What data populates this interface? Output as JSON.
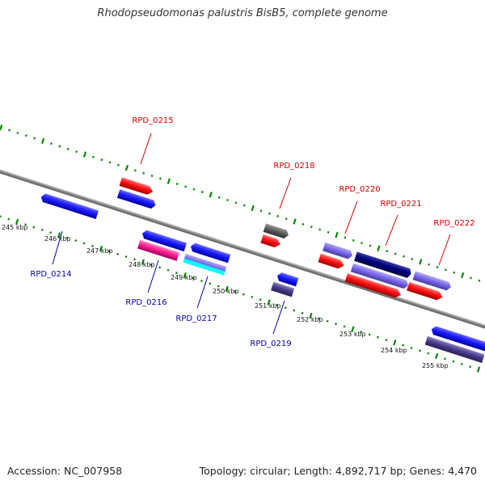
{
  "title": "Rhodopseudomonas palustris BisB5, complete genome",
  "footer": {
    "accession": "Accession: NC_007958",
    "summary": "Topology: circular; Length: 4,892,717 bp; Genes: 4,470"
  },
  "scale": {
    "kbp_labels": [
      "245 kbp",
      "246 kbp",
      "247 kbp",
      "248 kbp",
      "249 kbp",
      "250 kbp",
      "251 kbp",
      "252 kbp",
      "253 kbp",
      "254 kbp",
      "255 kbp"
    ]
  },
  "genes": {
    "RPD_0214": "RPD_0214",
    "RPD_0215": "RPD_0215",
    "RPD_0216": "RPD_0216",
    "RPD_0217": "RPD_0217",
    "RPD_0218": "RPD_0218",
    "RPD_0219": "RPD_0219",
    "RPD_0220": "RPD_0220",
    "RPD_0221": "RPD_0221",
    "RPD_0222": "RPD_0222"
  },
  "colors": {
    "forward_label": "#cc0000",
    "reverse_label": "#0000aa",
    "tick": "#008800",
    "backbone": "#888888",
    "blue": "#0000ee",
    "red": "#ee0000",
    "magenta": "#ee1493",
    "gray": "#555555",
    "lavender": "#6a5acd",
    "navy": "#000080",
    "slate": "#483d8b",
    "cyan": "#00ffff"
  }
}
